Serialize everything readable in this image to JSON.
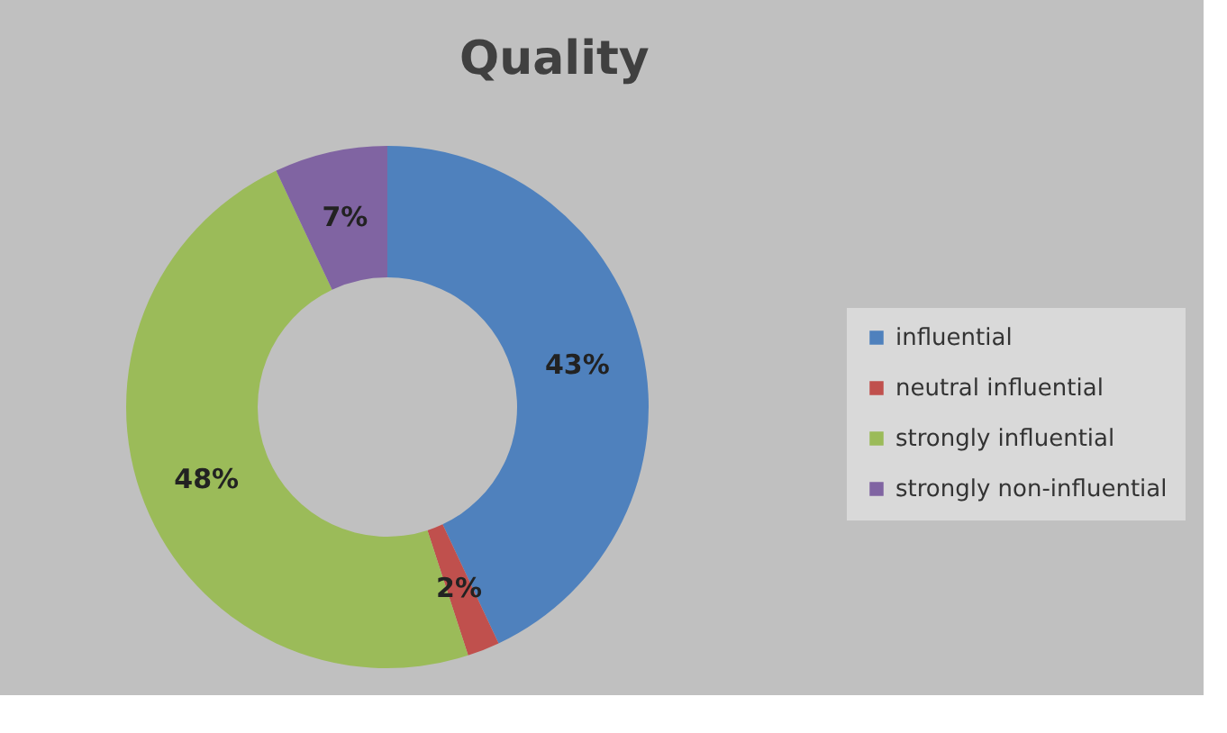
{
  "chart_data": {
    "type": "donut",
    "title": "Quality",
    "categories": [
      "influential",
      "neutral influential",
      "strongly influential",
      "strongly non-influential"
    ],
    "values": [
      43,
      2,
      48,
      7
    ],
    "colors": [
      "#4f81bd",
      "#c0504d",
      "#9bbb59",
      "#8064a2"
    ],
    "value_labels": [
      "43%",
      "2%",
      "48%",
      "7%"
    ],
    "legend": "right"
  }
}
